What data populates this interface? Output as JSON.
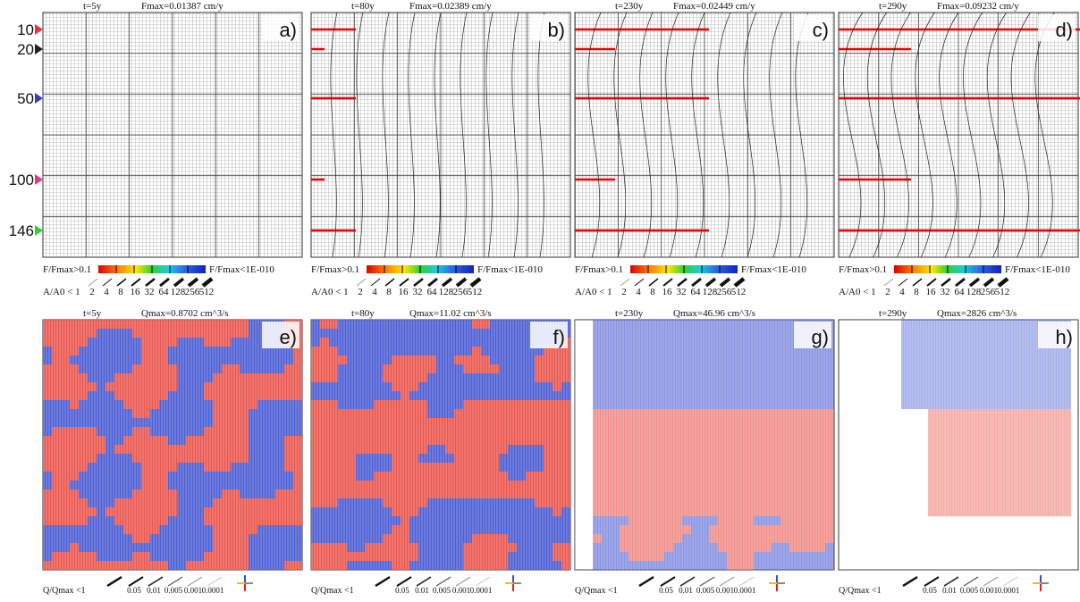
{
  "markers": [
    {
      "label": "10",
      "color": "#e8323c"
    },
    {
      "label": "20",
      "color": "#222222"
    },
    {
      "label": "50",
      "color": "#3a3fb0"
    },
    {
      "label": "100",
      "color": "#e8338a"
    },
    {
      "label": "146",
      "color": "#2fd02f"
    }
  ],
  "flow_panels": [
    {
      "letter": "a)",
      "time": "t=5y",
      "max": "Fmax=0.01387 cm/y"
    },
    {
      "letter": "b)",
      "time": "t=80y",
      "max": "Fmax=0.02389 cm/y"
    },
    {
      "letter": "c)",
      "time": "t=230y",
      "max": "Fmax=0.02449 cm/y"
    },
    {
      "letter": "d)",
      "time": "t=290y",
      "max": "Fmax=0.09232 cm/y"
    }
  ],
  "flow_legend": {
    "low": "F/Fmax>0.1",
    "high": "F/Fmax<1E-010",
    "aperture_label": "A/A0 < 1",
    "apertures": [
      "2",
      "4",
      "8",
      "16",
      "32",
      "64",
      "128",
      "256",
      "512"
    ]
  },
  "rate_panels": [
    {
      "letter": "e)",
      "time": "t=5y",
      "max": "Qmax=0.8702 cm^3/s"
    },
    {
      "letter": "f)",
      "time": "t=80y",
      "max": "Qmax=11.02 cm^3/s"
    },
    {
      "letter": "g)",
      "time": "t=230y",
      "max": "Qmax=46.96 cm^3/s"
    },
    {
      "letter": "h)",
      "time": "t=290y",
      "max": "Qmax=2826 cm^3/s"
    }
  ],
  "rate_legend": {
    "label": "Q/Qmax <1",
    "levels": [
      "0.05",
      "0.01",
      "0.005",
      "0.001",
      "0.0001"
    ]
  }
}
